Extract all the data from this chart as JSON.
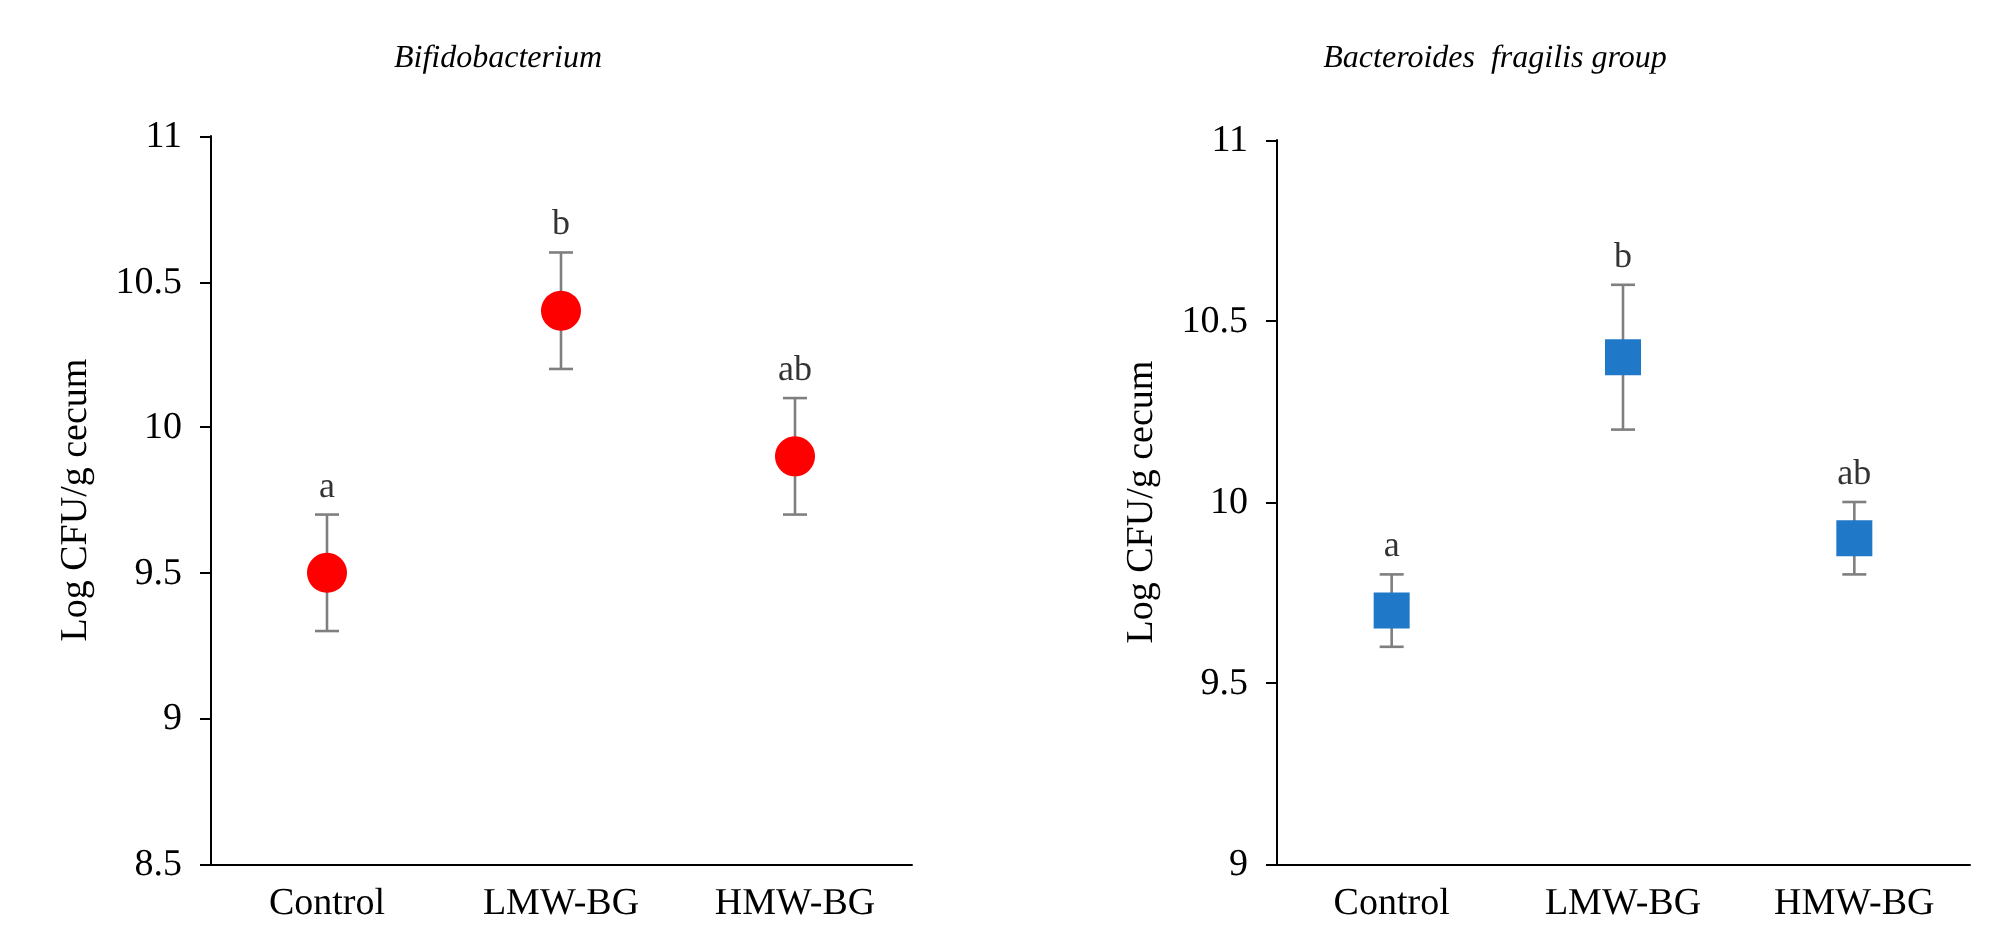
{
  "chart_data": [
    {
      "type": "scatter",
      "title": "Bifidobacterium",
      "ylabel": "Log CFU/g cecum",
      "categories": [
        "Control",
        "LMW-BG",
        "HMW-BG"
      ],
      "marker": "circle",
      "series": [
        {
          "color": "#ff0000",
          "values": [
            9.5,
            10.4,
            9.9
          ],
          "errors": [
            0.2,
            0.2,
            0.2
          ]
        }
      ],
      "ylim": [
        8.5,
        11
      ],
      "yticks": [
        8.5,
        9,
        9.5,
        10,
        10.5,
        11
      ],
      "annotations": [
        {
          "text": "a",
          "x": "Control",
          "y": 9.7
        },
        {
          "text": "b",
          "x": "LMW-BG",
          "y": 10.6
        },
        {
          "text": "ab",
          "x": "HMW-BG",
          "y": 10.1
        }
      ]
    },
    {
      "type": "scatter",
      "title": "Bacteroides  fragilis group",
      "ylabel": "Log CFU/g cecum",
      "categories": [
        "Control",
        "LMW-BG",
        "HMW-BG"
      ],
      "marker": "square",
      "series": [
        {
          "color": "#1f78c8",
          "values": [
            9.7,
            10.4,
            9.9
          ],
          "errors": [
            0.1,
            0.2,
            0.1
          ]
        }
      ],
      "ylim": [
        9,
        11
      ],
      "yticks": [
        9,
        9.5,
        10,
        10.5,
        11
      ],
      "annotations": [
        {
          "text": "a",
          "x": "Control",
          "y": 9.8
        },
        {
          "text": "b",
          "x": "LMW-BG",
          "y": 10.6
        },
        {
          "text": "ab",
          "x": "HMW-BG",
          "y": 10.0
        }
      ]
    }
  ]
}
